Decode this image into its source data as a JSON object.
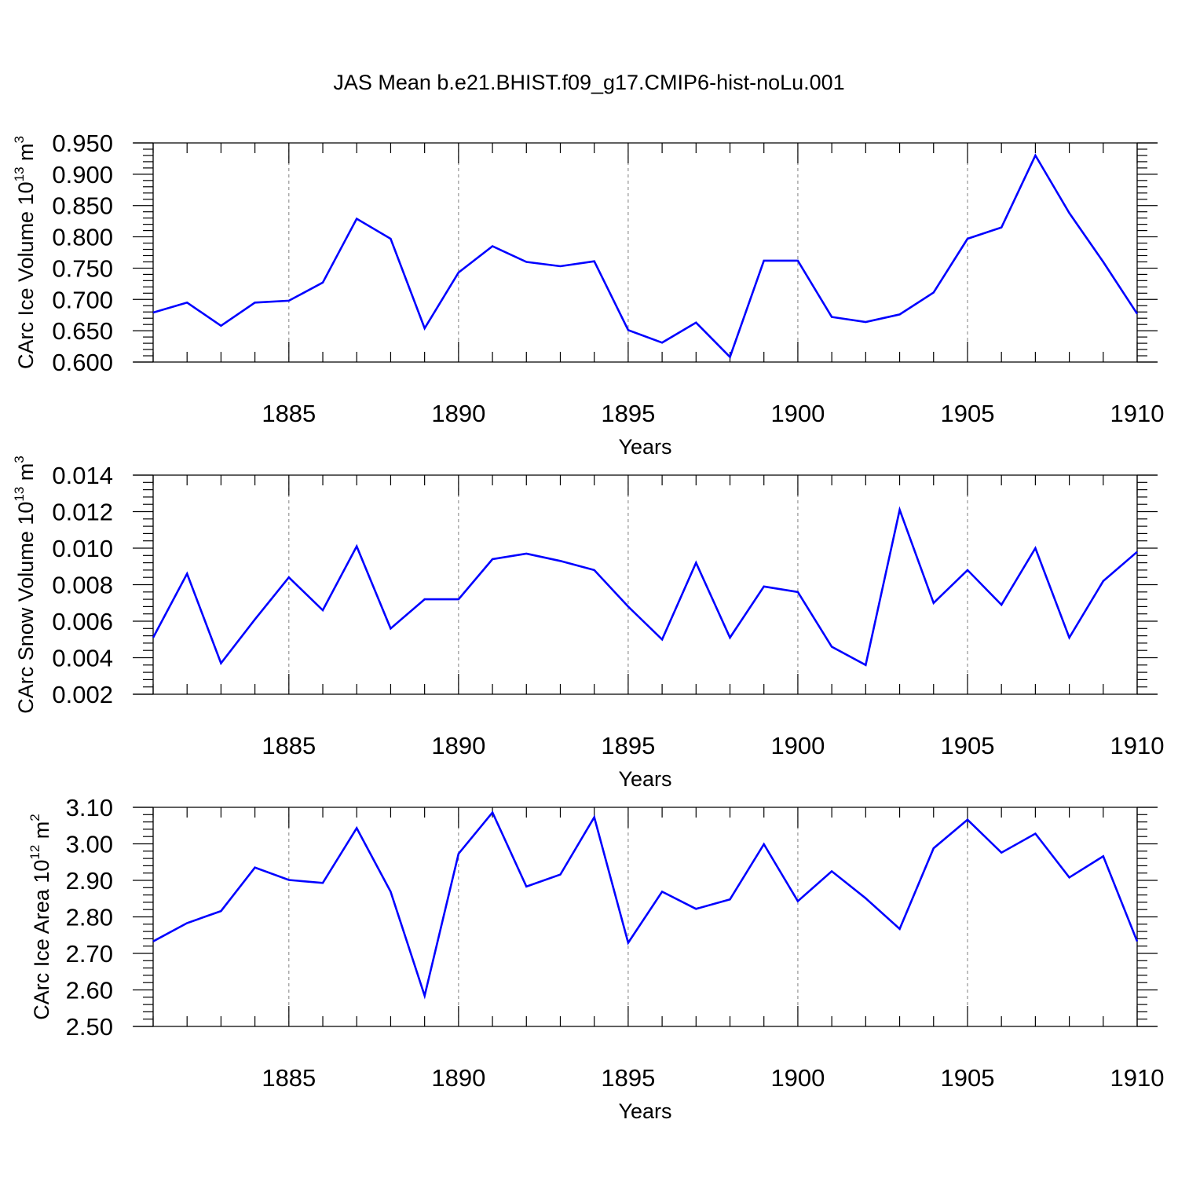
{
  "title": "JAS Mean b.e21.BHIST.f09_g17.CMIP6-hist-noLu.001",
  "colors": {
    "line": "#0000ff",
    "axis": "#000000",
    "grid": "#808080"
  },
  "chart_data": [
    {
      "type": "line",
      "ylabel": {
        "main": "CArc Ice Volume 10",
        "exp": "13",
        "unit": " m",
        "unit_exp": "3"
      },
      "xlabel": "Years",
      "xlim": [
        1881,
        1910
      ],
      "ylim": [
        0.6,
        0.95
      ],
      "yticks": [
        "0.600",
        "0.650",
        "0.700",
        "0.750",
        "0.800",
        "0.850",
        "0.900",
        "0.950"
      ],
      "xticks": [
        "1885",
        "1890",
        "1895",
        "1900",
        "1905",
        "1910"
      ],
      "x": [
        1881,
        1882,
        1883,
        1884,
        1885,
        1886,
        1887,
        1888,
        1889,
        1890,
        1891,
        1892,
        1893,
        1894,
        1895,
        1896,
        1897,
        1898,
        1899,
        1900,
        1901,
        1902,
        1903,
        1904,
        1905,
        1906,
        1907,
        1908,
        1909,
        1910
      ],
      "values": [
        0.679,
        0.695,
        0.658,
        0.695,
        0.698,
        0.727,
        0.829,
        0.797,
        0.654,
        0.743,
        0.785,
        0.76,
        0.753,
        0.761,
        0.651,
        0.631,
        0.663,
        0.608,
        0.762,
        0.762,
        0.672,
        0.664,
        0.676,
        0.711,
        0.797,
        0.815,
        0.93,
        0.838,
        0.76,
        0.677
      ]
    },
    {
      "type": "line",
      "ylabel": {
        "main": "CArc Snow Volume 10",
        "exp": "13",
        "unit": " m",
        "unit_exp": "3"
      },
      "xlabel": "Years",
      "xlim": [
        1881,
        1910
      ],
      "ylim": [
        0.002,
        0.014
      ],
      "yticks": [
        "0.002",
        "0.004",
        "0.006",
        "0.008",
        "0.010",
        "0.012",
        "0.014"
      ],
      "xticks": [
        "1885",
        "1890",
        "1895",
        "1900",
        "1905",
        "1910"
      ],
      "x": [
        1881,
        1882,
        1883,
        1884,
        1885,
        1886,
        1887,
        1888,
        1889,
        1890,
        1891,
        1892,
        1893,
        1894,
        1895,
        1896,
        1897,
        1898,
        1899,
        1900,
        1901,
        1902,
        1903,
        1904,
        1905,
        1906,
        1907,
        1908,
        1909,
        1910
      ],
      "values": [
        0.0051,
        0.0086,
        0.0037,
        0.0061,
        0.0084,
        0.0066,
        0.0101,
        0.0056,
        0.0072,
        0.0072,
        0.0094,
        0.0097,
        0.0093,
        0.0088,
        0.0068,
        0.005,
        0.0092,
        0.0051,
        0.0079,
        0.0076,
        0.0046,
        0.0036,
        0.0121,
        0.007,
        0.0088,
        0.0069,
        0.01,
        0.0051,
        0.0082,
        0.0098
      ]
    },
    {
      "type": "line",
      "ylabel": {
        "main": "CArc Ice Area 10",
        "exp": "12",
        "unit": " m",
        "unit_exp": "2"
      },
      "xlabel": "Years",
      "xlim": [
        1881,
        1910
      ],
      "ylim": [
        2.5,
        3.1
      ],
      "yticks": [
        "2.50",
        "2.60",
        "2.70",
        "2.80",
        "2.90",
        "3.00",
        "3.10"
      ],
      "xticks": [
        "1885",
        "1890",
        "1895",
        "1900",
        "1905",
        "1910"
      ],
      "x": [
        1881,
        1882,
        1883,
        1884,
        1885,
        1886,
        1887,
        1888,
        1889,
        1890,
        1891,
        1892,
        1893,
        1894,
        1895,
        1896,
        1897,
        1898,
        1899,
        1900,
        1901,
        1902,
        1903,
        1904,
        1905,
        1906,
        1907,
        1908,
        1909,
        1910
      ],
      "values": [
        2.733,
        2.783,
        2.816,
        2.935,
        2.901,
        2.893,
        3.043,
        2.869,
        2.584,
        2.973,
        3.086,
        2.883,
        2.916,
        3.073,
        2.729,
        2.869,
        2.822,
        2.848,
        2.999,
        2.843,
        2.925,
        2.851,
        2.767,
        2.988,
        3.066,
        2.976,
        3.028,
        2.908,
        2.966,
        2.733
      ]
    }
  ]
}
